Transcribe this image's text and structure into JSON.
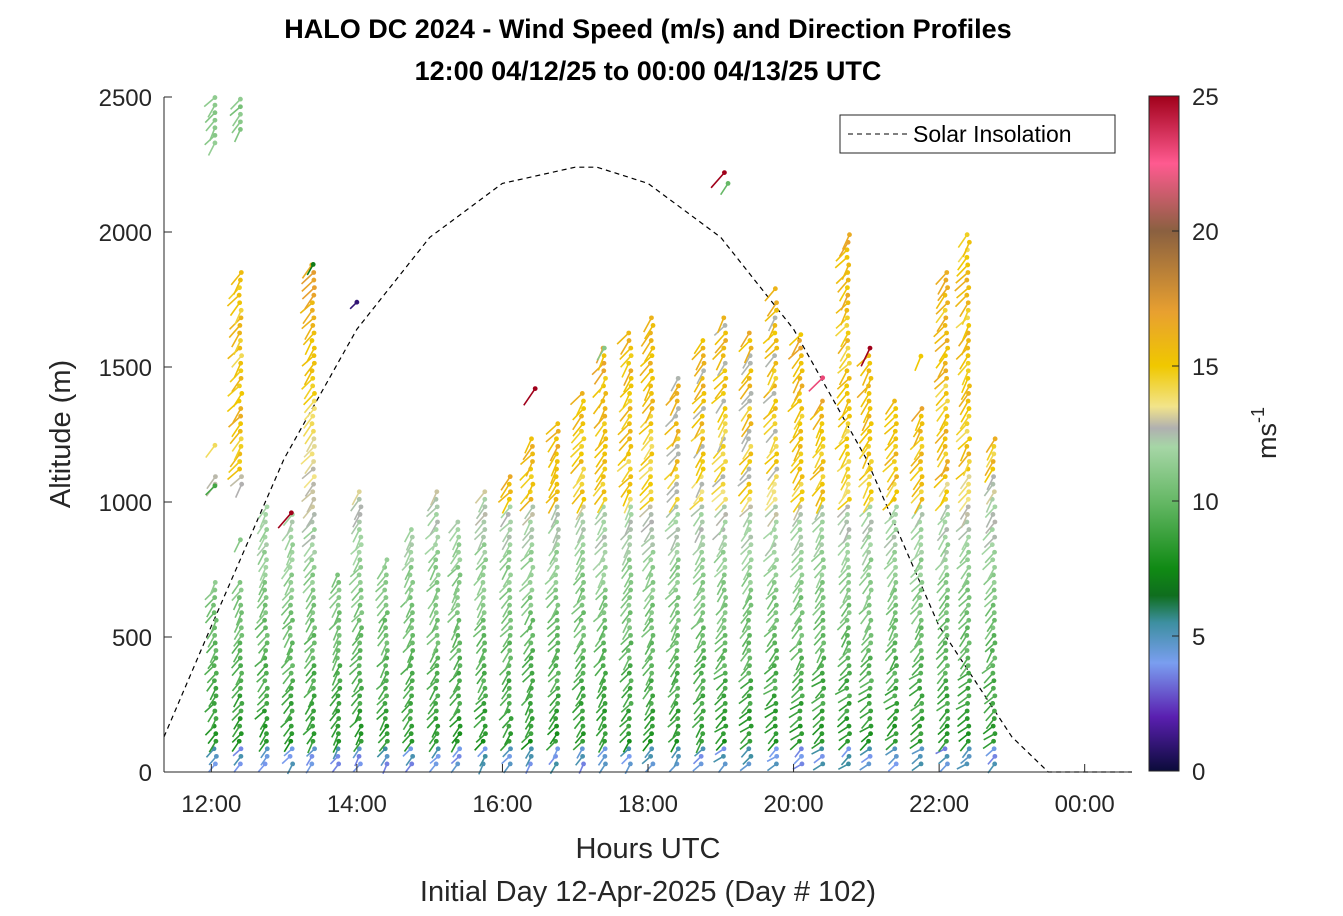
{
  "chart_data": {
    "type": "scatter",
    "title": "HALO DC 2024 - Wind Speed (m/s) and Direction Profiles",
    "subtitle": "12:00 04/12/25 to 00:00 04/13/25  UTC",
    "xlabel": "Hours UTC",
    "xlabel2": "Initial Day 12-Apr-2025 (Day # 102)",
    "ylabel": "Altitude (m)",
    "xlim": [
      11.35,
      24.65
    ],
    "ylim": [
      0,
      2500
    ],
    "x_ticks": [
      12,
      14,
      16,
      18,
      20,
      22,
      24
    ],
    "x_tick_labels": [
      "12:00",
      "14:00",
      "16:00",
      "18:00",
      "20:00",
      "22:00",
      "00:00"
    ],
    "y_ticks": [
      0,
      500,
      1000,
      1500,
      2000,
      2500
    ],
    "y_tick_labels": [
      "0",
      "500",
      "1000",
      "1500",
      "2000",
      "2500"
    ],
    "legend": {
      "entries": [
        "Solar Insolation"
      ],
      "placement": "top-right"
    },
    "colorbar": {
      "label": "ms",
      "label_sup": "-1",
      "range": [
        0,
        25
      ],
      "ticks": [
        0,
        5,
        10,
        15,
        20,
        25
      ],
      "tick_labels": [
        "0",
        "5",
        "10",
        "15",
        "20",
        "25"
      ],
      "stops": [
        {
          "v": 0,
          "c": "#0b0b3a"
        },
        {
          "v": 2,
          "c": "#5a1fb0"
        },
        {
          "v": 4,
          "c": "#7a9ef0"
        },
        {
          "v": 5.5,
          "c": "#3d8fa0"
        },
        {
          "v": 6.5,
          "c": "#0f6e1e"
        },
        {
          "v": 7.5,
          "c": "#108a14"
        },
        {
          "v": 10,
          "c": "#66b866"
        },
        {
          "v": 12,
          "c": "#a6d6a6"
        },
        {
          "v": 12.7,
          "c": "#b0b0b0"
        },
        {
          "v": 13.5,
          "c": "#f2e48a"
        },
        {
          "v": 15,
          "c": "#f0c800"
        },
        {
          "v": 17,
          "c": "#e8a030"
        },
        {
          "v": 20,
          "c": "#8a6040"
        },
        {
          "v": 22.5,
          "c": "#ff5a90"
        },
        {
          "v": 25,
          "c": "#a0001a"
        }
      ]
    },
    "solar_insolation": {
      "style": "dashed",
      "x": [
        11.35,
        12,
        13,
        14,
        15,
        16,
        17,
        17.3,
        18,
        19,
        20,
        21,
        22,
        23,
        23.5,
        23.7,
        24,
        24.65
      ],
      "y": [
        130,
        540,
        1160,
        1640,
        1980,
        2180,
        2240,
        2240,
        2180,
        1980,
        1640,
        1160,
        540,
        130,
        0,
        0,
        0,
        0
      ]
    },
    "profiles": [
      {
        "t": 12.05,
        "top": 1100,
        "extra": [
          [
            2330,
            2500
          ]
        ]
      },
      {
        "t": 12.4,
        "top": 1850,
        "extra": [
          [
            2380,
            2500
          ]
        ]
      },
      {
        "t": 12.75,
        "top": 1000
      },
      {
        "t": 13.1,
        "top": 960
      },
      {
        "t": 13.4,
        "top": 1880
      },
      {
        "t": 13.75,
        "top": 750
      },
      {
        "t": 14.05,
        "top": 1060
      },
      {
        "t": 14.4,
        "top": 800
      },
      {
        "t": 14.75,
        "top": 900
      },
      {
        "t": 15.1,
        "top": 1060
      },
      {
        "t": 15.4,
        "top": 950
      },
      {
        "t": 15.75,
        "top": 1060
      },
      {
        "t": 16.1,
        "top": 1120
      },
      {
        "t": 16.4,
        "top": 1240
      },
      {
        "t": 16.75,
        "top": 1300
      },
      {
        "t": 17.1,
        "top": 1420
      },
      {
        "t": 17.4,
        "top": 1570
      },
      {
        "t": 17.75,
        "top": 1650
      },
      {
        "t": 18.05,
        "top": 1700
      },
      {
        "t": 18.4,
        "top": 1480
      },
      {
        "t": 18.75,
        "top": 1600
      },
      {
        "t": 19.05,
        "top": 1700
      },
      {
        "t": 19.4,
        "top": 1640
      },
      {
        "t": 19.75,
        "top": 1750
      },
      {
        "t": 20.1,
        "top": 1620
      },
      {
        "t": 20.4,
        "top": 1400
      },
      {
        "t": 20.75,
        "top": 2000
      },
      {
        "t": 21.05,
        "top": 1550
      },
      {
        "t": 21.4,
        "top": 1380
      },
      {
        "t": 21.75,
        "top": 1360
      },
      {
        "t": 22.1,
        "top": 1850
      },
      {
        "t": 22.4,
        "top": 2000
      },
      {
        "t": 22.75,
        "top": 1250
      }
    ],
    "isolated_points": [
      {
        "t": 12.05,
        "alt": 1210,
        "speed": 14
      },
      {
        "t": 12.05,
        "alt": 1060,
        "speed": 9
      },
      {
        "t": 12.4,
        "alt": 860,
        "speed": 11
      },
      {
        "t": 13.1,
        "alt": 960,
        "speed": 25
      },
      {
        "t": 13.4,
        "alt": 1880,
        "speed": 7
      },
      {
        "t": 14.0,
        "alt": 1740,
        "speed": 1
      },
      {
        "t": 16.45,
        "alt": 1420,
        "speed": 25
      },
      {
        "t": 17.4,
        "alt": 1570,
        "speed": 11
      },
      {
        "t": 19.05,
        "alt": 2220,
        "speed": 25
      },
      {
        "t": 19.1,
        "alt": 2180,
        "speed": 10
      },
      {
        "t": 19.75,
        "alt": 1790,
        "speed": 16
      },
      {
        "t": 20.1,
        "alt": 1620,
        "speed": 15
      },
      {
        "t": 20.4,
        "alt": 1460,
        "speed": 23
      },
      {
        "t": 21.05,
        "alt": 1570,
        "speed": 25
      },
      {
        "t": 21.75,
        "alt": 1540,
        "speed": 15
      }
    ]
  }
}
